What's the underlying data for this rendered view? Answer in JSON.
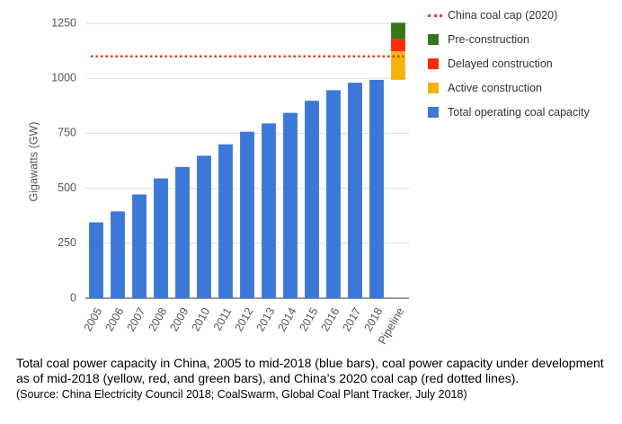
{
  "chart_data": {
    "type": "bar",
    "stacked": true,
    "y_label": "Gigawatts (GW)",
    "categories": [
      "2005",
      "2006",
      "2007",
      "2008",
      "2009",
      "2010",
      "2011",
      "2012",
      "2013",
      "2014",
      "2015",
      "2016",
      "2017",
      "2018",
      "Pipeline"
    ],
    "series": [
      {
        "name": "Total operating coal capacity",
        "color": "#3c78d8",
        "values": [
          345,
          395,
          472,
          545,
          597,
          648,
          700,
          757,
          795,
          843,
          898,
          946,
          980,
          993,
          null
        ]
      },
      {
        "name": "Active construction",
        "color": "#f6b30f",
        "values": [
          null,
          null,
          null,
          null,
          null,
          null,
          null,
          null,
          null,
          null,
          null,
          null,
          null,
          null,
          130
        ]
      },
      {
        "name": "Delayed construction",
        "color": "#ff2b0a",
        "values": [
          null,
          null,
          null,
          null,
          null,
          null,
          null,
          null,
          null,
          null,
          null,
          null,
          null,
          null,
          55
        ]
      },
      {
        "name": "Pre-construction",
        "color": "#38761d",
        "values": [
          null,
          null,
          null,
          null,
          null,
          null,
          null,
          null,
          null,
          null,
          null,
          null,
          null,
          null,
          75
        ]
      }
    ],
    "reference_lines": [
      {
        "name": "China coal cap (2020)",
        "value": 1100,
        "color": "#e8392a"
      }
    ],
    "ylim": [
      0,
      1250
    ],
    "yticks": [
      0,
      250,
      500,
      750,
      1000,
      1250
    ],
    "grid": true
  },
  "caption": "Total coal power capacity in China, 2005 to mid-2018 (blue bars), coal power capacity under development as of mid-2018 (yellow, red, and green bars), and China’s 2020 coal cap (red dotted lines).",
  "source": "(Source: China Electricity Council 2018; CoalSwarm, Global Coal Plant Tracker, July 2018)"
}
